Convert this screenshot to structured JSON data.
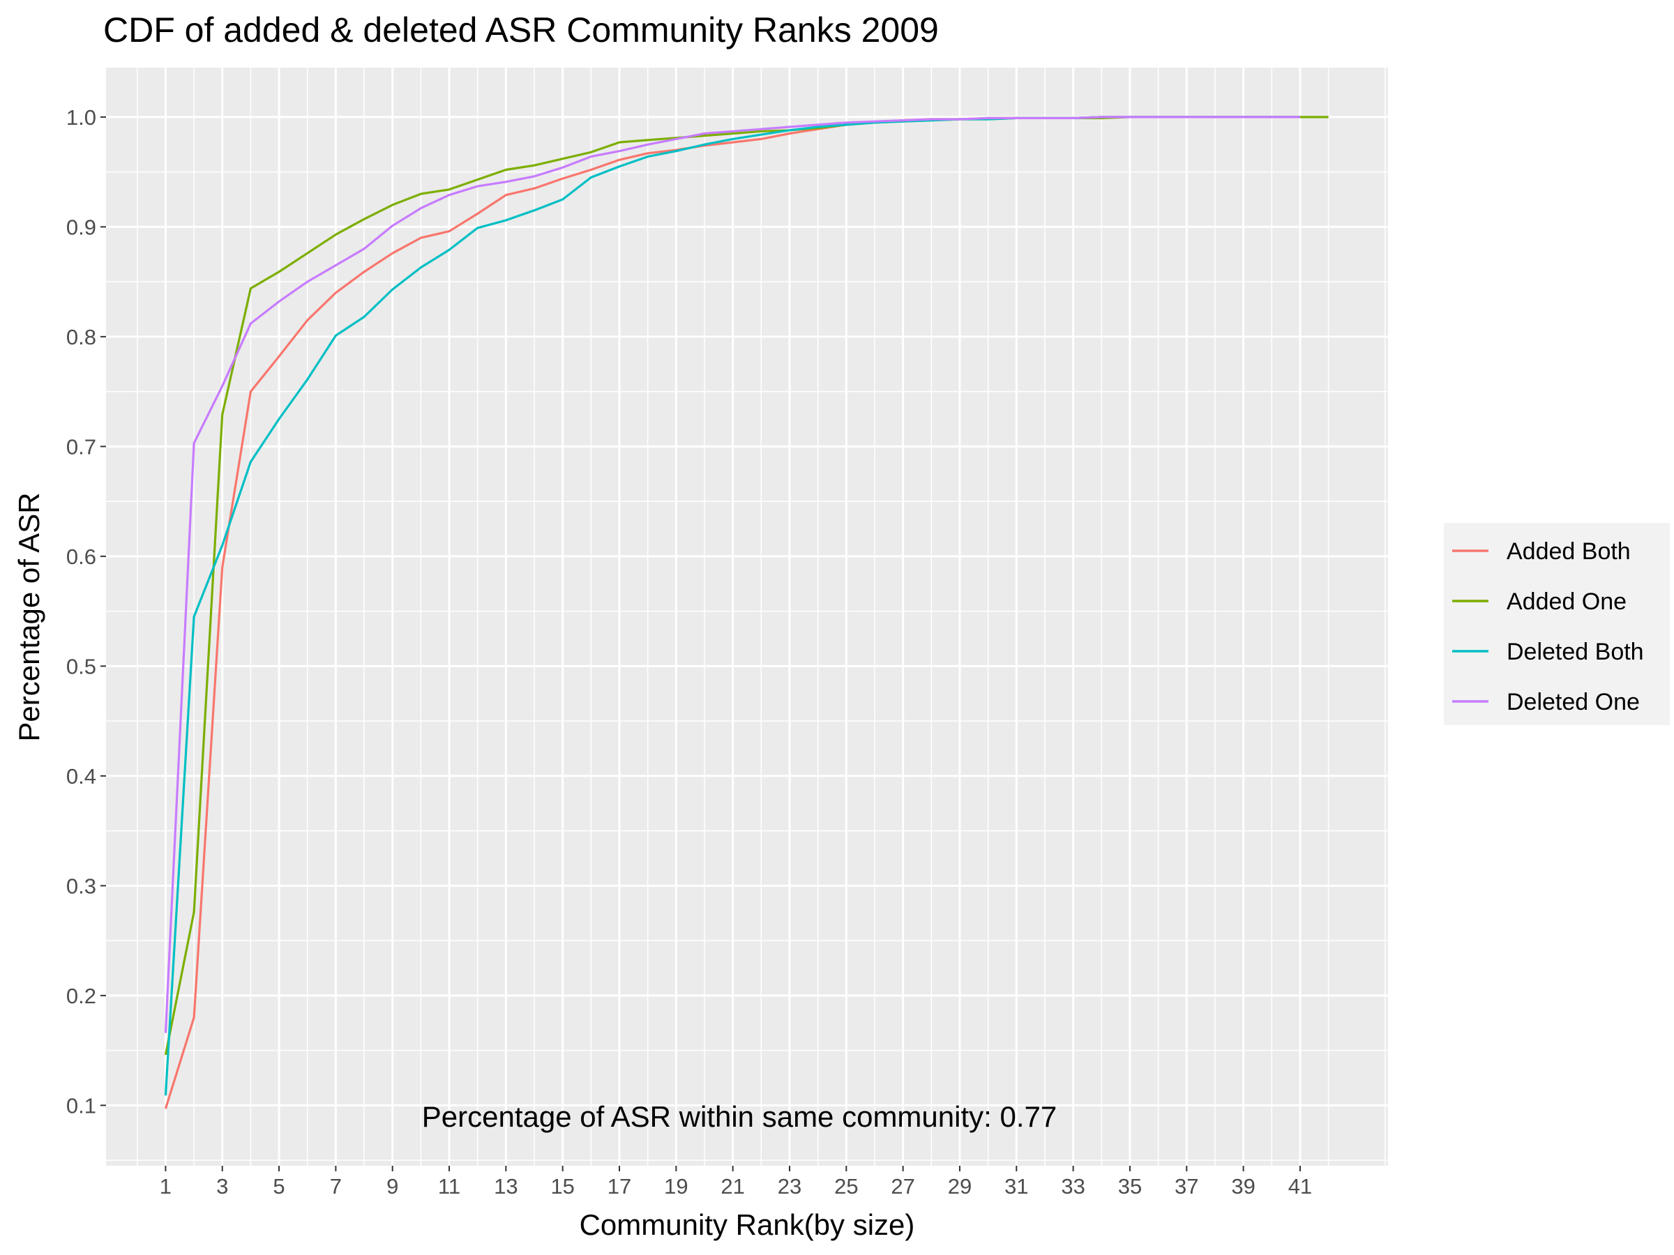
{
  "chart_data": {
    "type": "line",
    "title": "CDF of added & deleted ASR Community Ranks 2009",
    "xlabel": "Community Rank(by size)",
    "ylabel": "Percentage of ASR",
    "annotation": "Percentage of ASR within same community: 0.77",
    "xlim": [
      -1.1,
      44.1
    ],
    "ylim": [
      0.045,
      1.045
    ],
    "x_ticks": [
      1,
      3,
      5,
      7,
      9,
      11,
      13,
      15,
      17,
      19,
      21,
      23,
      25,
      27,
      29,
      31,
      33,
      35,
      37,
      39,
      41
    ],
    "x_tick_labels": [
      "1",
      "3",
      "5",
      "7",
      "9",
      "11",
      "13",
      "15",
      "17",
      "19",
      "21",
      "23",
      "25",
      "27",
      "29",
      "31",
      "33",
      "35",
      "37",
      "39",
      "41"
    ],
    "y_ticks": [
      0.1,
      0.2,
      0.3,
      0.4,
      0.5,
      0.6,
      0.7,
      0.8,
      0.9,
      1.0
    ],
    "y_tick_labels": [
      "0.1",
      "0.2",
      "0.3",
      "0.4",
      "0.5",
      "0.6",
      "0.7",
      "0.8",
      "0.9",
      "1.0"
    ],
    "grid": true,
    "legend_position": "right",
    "series": [
      {
        "name": "Added Both",
        "color": "#F8766D",
        "x": [
          1,
          2,
          3,
          4,
          5,
          6,
          7,
          8,
          9,
          10,
          11,
          12,
          13,
          14,
          15,
          16,
          17,
          18,
          19,
          20,
          21,
          22,
          23,
          24,
          25,
          26,
          27,
          28,
          29,
          30,
          31,
          32,
          33,
          34,
          35,
          36,
          37,
          38,
          39,
          40,
          41
        ],
        "y": [
          0.097,
          0.18,
          0.59,
          0.75,
          0.782,
          0.815,
          0.84,
          0.859,
          0.876,
          0.89,
          0.896,
          0.912,
          0.929,
          0.935,
          0.944,
          0.952,
          0.961,
          0.967,
          0.97,
          0.974,
          0.977,
          0.98,
          0.985,
          0.989,
          0.993,
          0.995,
          0.997,
          0.998,
          0.998,
          0.999,
          0.999,
          0.999,
          0.999,
          1.0,
          1.0,
          1.0,
          1.0,
          1.0,
          1.0,
          1.0,
          1.0
        ]
      },
      {
        "name": "Added One",
        "color": "#7CAE00",
        "x": [
          1,
          2,
          3,
          4,
          5,
          6,
          7,
          8,
          9,
          10,
          11,
          12,
          13,
          14,
          15,
          16,
          17,
          18,
          19,
          20,
          21,
          22,
          23,
          24,
          25,
          26,
          27,
          28,
          29,
          30,
          31,
          32,
          33,
          34,
          35,
          36,
          37,
          38,
          39,
          40,
          41,
          42
        ],
        "y": [
          0.146,
          0.276,
          0.729,
          0.844,
          0.859,
          0.876,
          0.893,
          0.907,
          0.92,
          0.93,
          0.934,
          0.943,
          0.952,
          0.956,
          0.962,
          0.968,
          0.977,
          0.979,
          0.981,
          0.983,
          0.985,
          0.987,
          0.988,
          0.99,
          0.993,
          0.995,
          0.996,
          0.997,
          0.998,
          0.998,
          0.999,
          0.999,
          0.999,
          0.999,
          1.0,
          1.0,
          1.0,
          1.0,
          1.0,
          1.0,
          1.0,
          1.0
        ]
      },
      {
        "name": "Deleted Both",
        "color": "#00BFC4",
        "x": [
          1,
          2,
          3,
          4,
          5,
          6,
          7,
          8,
          9,
          10,
          11,
          12,
          13,
          14,
          15,
          16,
          17,
          18,
          19,
          20,
          21,
          22,
          23,
          24,
          25,
          26,
          27,
          28,
          29,
          30,
          31,
          32,
          33,
          34,
          35,
          36,
          37,
          38,
          39,
          40,
          41
        ],
        "y": [
          0.109,
          0.545,
          0.61,
          0.686,
          0.725,
          0.761,
          0.801,
          0.818,
          0.843,
          0.863,
          0.879,
          0.899,
          0.906,
          0.915,
          0.925,
          0.945,
          0.955,
          0.964,
          0.969,
          0.975,
          0.98,
          0.984,
          0.988,
          0.991,
          0.993,
          0.995,
          0.996,
          0.997,
          0.998,
          0.998,
          0.999,
          0.999,
          0.999,
          1.0,
          1.0,
          1.0,
          1.0,
          1.0,
          1.0,
          1.0,
          1.0
        ]
      },
      {
        "name": "Deleted One",
        "color": "#C77CFF",
        "x": [
          1,
          2,
          3,
          4,
          5,
          6,
          7,
          8,
          9,
          10,
          11,
          12,
          13,
          14,
          15,
          16,
          17,
          18,
          19,
          20,
          21,
          22,
          23,
          24,
          25,
          26,
          27,
          28,
          29,
          30,
          31,
          32,
          33,
          34,
          35,
          36,
          37,
          38,
          39,
          40,
          41
        ],
        "y": [
          0.166,
          0.703,
          0.755,
          0.812,
          0.832,
          0.85,
          0.865,
          0.88,
          0.901,
          0.917,
          0.929,
          0.937,
          0.941,
          0.946,
          0.954,
          0.964,
          0.969,
          0.975,
          0.98,
          0.985,
          0.987,
          0.989,
          0.991,
          0.993,
          0.995,
          0.996,
          0.997,
          0.998,
          0.998,
          0.999,
          0.999,
          0.999,
          0.999,
          1.0,
          1.0,
          1.0,
          1.0,
          1.0,
          1.0,
          1.0,
          1.0
        ]
      }
    ]
  }
}
